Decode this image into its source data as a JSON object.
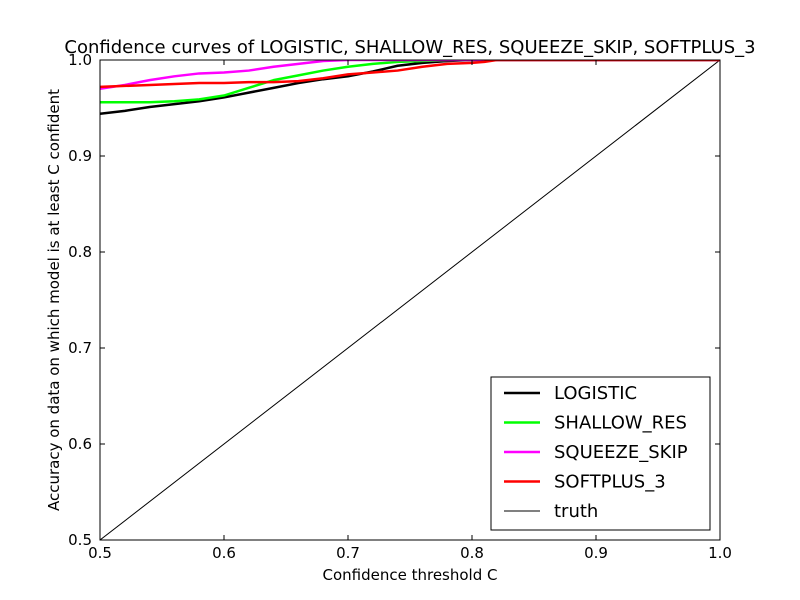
{
  "chart_data": {
    "type": "line",
    "title": "Confidence curves of LOGISTIC, SHALLOW_RES, SQUEEZE_SKIP, SOFTPLUS_3",
    "xlabel": "Confidence threshold C",
    "ylabel": "Accuracy on data on which model is at least C confident",
    "xlim": [
      0.5,
      1.0
    ],
    "ylim": [
      0.5,
      1.0
    ],
    "xticks": [
      "0.5",
      "0.6",
      "0.7",
      "0.8",
      "0.9",
      "1.0"
    ],
    "yticks": [
      "0.5",
      "0.6",
      "0.7",
      "0.8",
      "0.9",
      "1.0"
    ],
    "grid": false,
    "legend_position": "lower-right",
    "series": [
      {
        "name": "LOGISTIC",
        "color": "#000000",
        "width": "thick",
        "x": [
          0.5,
          0.52,
          0.54,
          0.56,
          0.58,
          0.6,
          0.62,
          0.64,
          0.66,
          0.68,
          0.7,
          0.72,
          0.74,
          0.76,
          0.78,
          0.8,
          0.82,
          0.85,
          0.9,
          1.0
        ],
        "y": [
          0.944,
          0.947,
          0.951,
          0.954,
          0.957,
          0.961,
          0.966,
          0.971,
          0.976,
          0.98,
          0.983,
          0.988,
          0.994,
          0.997,
          0.999,
          1.0,
          1.0,
          1.0,
          1.0,
          1.0
        ]
      },
      {
        "name": "SHALLOW_RES",
        "color": "#00ff00",
        "width": "thick",
        "x": [
          0.5,
          0.52,
          0.54,
          0.56,
          0.58,
          0.6,
          0.62,
          0.64,
          0.66,
          0.68,
          0.7,
          0.72,
          0.74,
          0.76,
          0.78,
          0.8,
          0.82,
          0.85,
          0.9,
          1.0
        ],
        "y": [
          0.956,
          0.956,
          0.956,
          0.957,
          0.959,
          0.963,
          0.971,
          0.979,
          0.984,
          0.989,
          0.993,
          0.996,
          0.998,
          0.999,
          1.0,
          1.0,
          1.0,
          1.0,
          1.0,
          1.0
        ]
      },
      {
        "name": "SQUEEZE_SKIP",
        "color": "#ff00ff",
        "width": "thick",
        "x": [
          0.5,
          0.52,
          0.54,
          0.56,
          0.58,
          0.6,
          0.62,
          0.64,
          0.66,
          0.68,
          0.7,
          0.72,
          0.75,
          0.8,
          0.9,
          1.0
        ],
        "y": [
          0.97,
          0.974,
          0.979,
          0.983,
          0.986,
          0.987,
          0.989,
          0.993,
          0.996,
          0.999,
          1.0,
          1.0,
          1.0,
          1.0,
          1.0,
          1.0
        ]
      },
      {
        "name": "SOFTPLUS_3",
        "color": "#ff0000",
        "width": "thick",
        "x": [
          0.5,
          0.52,
          0.54,
          0.56,
          0.58,
          0.6,
          0.62,
          0.64,
          0.66,
          0.68,
          0.7,
          0.72,
          0.74,
          0.76,
          0.78,
          0.8,
          0.81,
          0.82,
          0.85,
          0.9,
          1.0
        ],
        "y": [
          0.972,
          0.973,
          0.974,
          0.975,
          0.976,
          0.976,
          0.977,
          0.977,
          0.978,
          0.981,
          0.985,
          0.987,
          0.989,
          0.993,
          0.996,
          0.997,
          0.998,
          1.0,
          1.0,
          1.0,
          1.0
        ]
      },
      {
        "name": "truth",
        "color": "#000000",
        "width": "thin",
        "x": [
          0.5,
          1.0
        ],
        "y": [
          0.5,
          1.0
        ]
      }
    ]
  }
}
